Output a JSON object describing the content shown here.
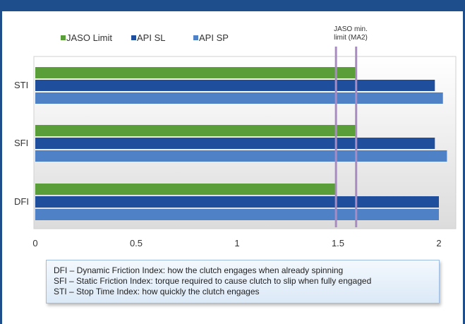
{
  "chart_data": {
    "type": "bar",
    "orientation": "horizontal",
    "categories": [
      "STI",
      "SFI",
      "DFI"
    ],
    "series": [
      {
        "name": "JASO Limit",
        "color": "#5a9e3a",
        "values": [
          1.59,
          1.59,
          1.49
        ]
      },
      {
        "name": "API SL",
        "color": "#1f4e9c",
        "values": [
          1.98,
          1.98,
          2.0
        ]
      },
      {
        "name": "API SP",
        "color": "#4f81c7",
        "values": [
          2.02,
          2.04,
          2.0
        ]
      }
    ],
    "xlim": [
      0,
      2.1
    ],
    "xticks": [
      "0",
      "0.5",
      "1",
      "1.5",
      "2"
    ],
    "xtick_values": [
      0,
      0.5,
      1,
      1.5,
      2
    ],
    "grid": false,
    "legend_placement": "top-left",
    "reference_lines": [
      {
        "value": 1.49,
        "color": "#a98bc2"
      },
      {
        "value": 1.59,
        "color": "#a98bc2"
      }
    ],
    "annotation": {
      "line1": "JASO min.",
      "line2": "limit (MA2)"
    }
  },
  "notes": [
    "DFI – Dynamic Friction Index: how the clutch engages when already spinning",
    "SFI – Static Friction Index: torque required to cause clutch to slip when fully engaged",
    "STI – Stop Time Index: how quickly the clutch engages"
  ]
}
